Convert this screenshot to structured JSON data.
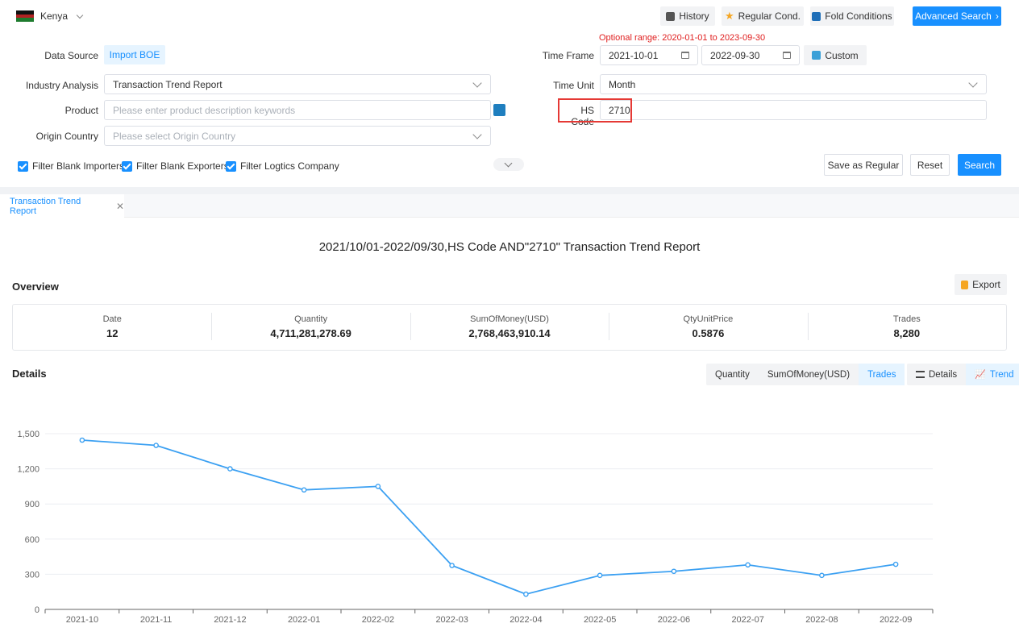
{
  "header": {
    "country": "Kenya",
    "history_label": "History",
    "regular_cond_label": "Regular Cond.",
    "fold_label": "Fold Conditions",
    "advanced_label": "Advanced Search"
  },
  "form": {
    "optional_range": "Optional range:  2020-01-01 to 2023-09-30",
    "data_source_label": "Data Source",
    "data_source_value": "Import BOE",
    "time_frame_label": "Time Frame",
    "date_start": "2021-10-01",
    "date_end": "2022-09-30",
    "custom_label": "Custom",
    "industry_label": "Industry Analysis",
    "industry_value": "Transaction Trend Report",
    "time_unit_label": "Time Unit",
    "time_unit_value": "Month",
    "product_label": "Product",
    "product_placeholder": "Please enter product description keywords",
    "hs_label": "HS Code",
    "hs_value": "2710",
    "origin_label": "Origin Country",
    "origin_placeholder": "Please select Origin Country",
    "filter_importers": "Filter Blank Importers",
    "filter_exporters": "Filter Blank Exporters",
    "filter_logistics": "Filter Logtics Company",
    "save_regular": "Save as Regular",
    "reset": "Reset",
    "search": "Search"
  },
  "tab": {
    "label": "Transaction Trend Report"
  },
  "report": {
    "title": "2021/10/01-2022/09/30,HS Code AND\"2710\" Transaction Trend Report",
    "overview_heading": "Overview",
    "export_label": "Export",
    "details_heading": "Details"
  },
  "overview": [
    {
      "label": "Date",
      "value": "12"
    },
    {
      "label": "Quantity",
      "value": "4,711,281,278.69"
    },
    {
      "label": "SumOfMoney(USD)",
      "value": "2,768,463,910.14"
    },
    {
      "label": "QtyUnitPrice",
      "value": "0.5876"
    },
    {
      "label": "Trades",
      "value": "8,280"
    }
  ],
  "metric_tabs": {
    "quantity": "Quantity",
    "money": "SumOfMoney(USD)",
    "trades": "Trades"
  },
  "view_tabs": {
    "details": "Details",
    "trend": "Trend"
  },
  "colors": {
    "accent": "#1890ff",
    "line": "#3ba0f2",
    "highlight": "#e53935"
  },
  "chart_data": {
    "type": "line",
    "title": "",
    "xlabel": "",
    "ylabel": "",
    "ylim": [
      0,
      1500
    ],
    "yticks": [
      0,
      300,
      600,
      900,
      1200,
      1500
    ],
    "ytick_labels": [
      "0",
      "300",
      "600",
      "900",
      "1,200",
      "1,500"
    ],
    "categories": [
      "2021-10",
      "2021-11",
      "2021-12",
      "2022-01",
      "2022-02",
      "2022-03",
      "2022-04",
      "2022-05",
      "2022-06",
      "2022-07",
      "2022-08",
      "2022-09"
    ],
    "series": [
      {
        "name": "Trades",
        "values": [
          1445,
          1400,
          1200,
          1020,
          1050,
          375,
          130,
          290,
          325,
          380,
          290,
          385
        ]
      }
    ]
  }
}
